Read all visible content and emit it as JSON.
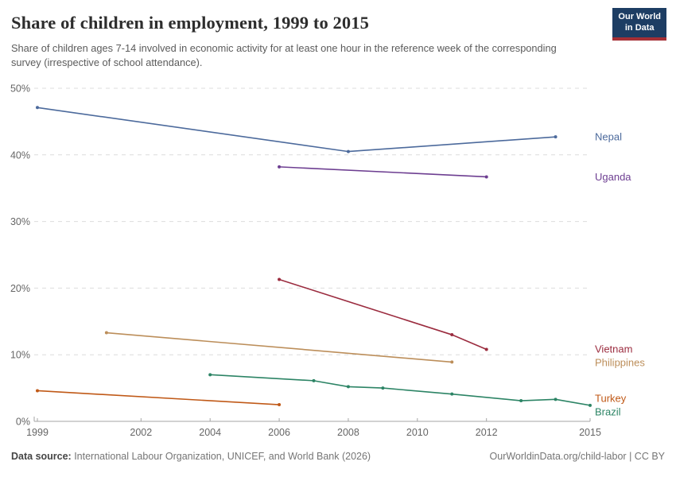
{
  "header": {
    "title": "Share of children in employment, 1999 to 2015",
    "subtitle": "Share of children ages 7-14 involved in economic activity for at least one hour in the reference week of the corresponding survey (irrespective of school attendance).",
    "logo": {
      "line1": "Our World",
      "line2": "in Data",
      "bg_color": "#1d3d63",
      "accent_color": "#a52f35"
    }
  },
  "chart_data": {
    "type": "line",
    "title": "Share of children in employment, 1999 to 2015",
    "xlabel": "",
    "ylabel": "",
    "xlim": [
      1999,
      2015
    ],
    "ylim": [
      0,
      50
    ],
    "x_ticks": [
      1999,
      2002,
      2004,
      2006,
      2008,
      2010,
      2012,
      2015
    ],
    "y_ticks": [
      0,
      10,
      20,
      30,
      40,
      50
    ],
    "y_tick_suffix": "%",
    "grid": "horizontal-dashed",
    "legend_position": "right-end-of-line",
    "series": [
      {
        "name": "Nepal",
        "color": "#4C6A9C",
        "points": [
          [
            1999,
            47.1
          ],
          [
            2008,
            40.5
          ],
          [
            2014,
            42.7
          ]
        ]
      },
      {
        "name": "Uganda",
        "color": "#6D3E91",
        "points": [
          [
            2006,
            38.2
          ],
          [
            2012,
            36.7
          ]
        ]
      },
      {
        "name": "Vietnam",
        "color": "#9B2C3F",
        "points": [
          [
            2006,
            21.3
          ],
          [
            2011,
            13.0
          ],
          [
            2012,
            10.8
          ]
        ]
      },
      {
        "name": "Philippines",
        "color": "#BC8E5A",
        "points": [
          [
            2001,
            13.3
          ],
          [
            2011,
            8.9
          ]
        ]
      },
      {
        "name": "Turkey",
        "color": "#C05917",
        "points": [
          [
            1999,
            4.6
          ],
          [
            2006,
            2.5
          ]
        ]
      },
      {
        "name": "Brazil",
        "color": "#2C8465",
        "points": [
          [
            2004,
            7.0
          ],
          [
            2007,
            6.1
          ],
          [
            2008,
            5.2
          ],
          [
            2009,
            5.0
          ],
          [
            2011,
            4.1
          ],
          [
            2013,
            3.1
          ],
          [
            2014,
            3.3
          ],
          [
            2015,
            2.4
          ]
        ]
      }
    ],
    "colors": {
      "gridline": "#dcdcdc",
      "axis": "#a5a5a5",
      "tick_text": "#666666"
    }
  },
  "footer": {
    "datasource_label": "Data source:",
    "datasource_text": " International Labour Organization, UNICEF, and World Bank (2026)",
    "link": "OurWorldinData.org/child-labor",
    "separator": " | ",
    "license": "CC BY"
  }
}
